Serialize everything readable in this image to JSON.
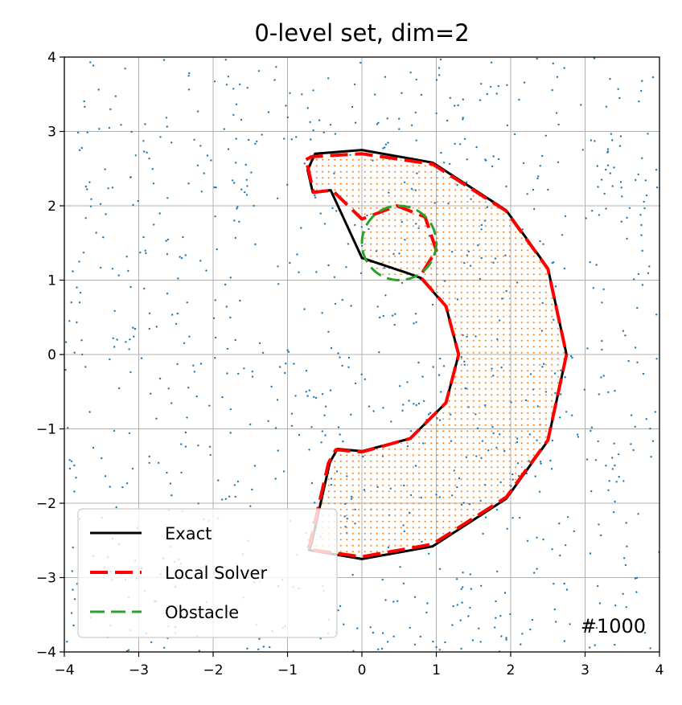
{
  "chart_data": {
    "type": "line",
    "title": "0-level set, dim=2",
    "xlabel": "",
    "ylabel": "",
    "xlim": [
      -4,
      4
    ],
    "ylim": [
      -4,
      4
    ],
    "xticks": [
      "−4",
      "−3",
      "−2",
      "−1",
      "0",
      "1",
      "2",
      "3",
      "4"
    ],
    "yticks": [
      "−4",
      "−3",
      "−2",
      "−1",
      "0",
      "1",
      "2",
      "3",
      "4"
    ],
    "grid": true,
    "legend_position": "lower-left",
    "annotation": "#1000",
    "region": {
      "outer_radius": 2.75,
      "inner_radius": 1.3,
      "gap_start_angle_deg": 105,
      "gap_end_angle_deg": 253,
      "color": "#ff7f0e"
    },
    "series": [
      {
        "name": "Exact",
        "color": "#000000",
        "style": "solid",
        "width": 3,
        "x": [
          -0.73,
          -0.63,
          0.0,
          0.95,
          1.94,
          2.5,
          2.75,
          2.5,
          1.94,
          0.95,
          0.0,
          -0.71,
          -0.68,
          -0.43,
          -0.33,
          0.0,
          0.65,
          1.13,
          1.3,
          1.13,
          0.79,
          0.6,
          0.0,
          -0.42,
          -0.66,
          -0.73
        ],
        "y": [
          2.48,
          2.7,
          2.75,
          2.58,
          1.94,
          1.16,
          0.0,
          -1.16,
          -1.94,
          -2.58,
          -2.75,
          -2.63,
          -2.55,
          -1.45,
          -1.27,
          -1.3,
          -1.13,
          -0.65,
          0.0,
          0.65,
          1.03,
          1.1,
          1.3,
          2.21,
          2.18,
          2.48
        ]
      },
      {
        "name": "Local Solver",
        "color": "#ff0000",
        "style": "dashed",
        "width": 4,
        "x": [
          -0.75,
          -0.68,
          0.0,
          0.95,
          1.94,
          2.5,
          2.75,
          2.5,
          1.94,
          0.95,
          0.0,
          -0.73,
          -0.7,
          -0.45,
          -0.35,
          0.0,
          0.65,
          1.13,
          1.3,
          1.13,
          0.78,
          1.0,
          0.85,
          0.47,
          0.0,
          -0.4,
          -0.65,
          -0.75
        ],
        "y": [
          2.62,
          2.66,
          2.7,
          2.56,
          1.93,
          1.15,
          0.0,
          -1.15,
          -1.92,
          -2.55,
          -2.72,
          -2.62,
          -2.55,
          -1.46,
          -1.28,
          -1.31,
          -1.13,
          -0.65,
          0.0,
          0.65,
          1.05,
          1.4,
          1.85,
          2.0,
          1.82,
          2.21,
          2.18,
          2.62
        ]
      },
      {
        "name": "Obstacle",
        "color": "#2ca02c",
        "style": "dashed",
        "width": 3,
        "center": [
          0.5,
          1.5
        ],
        "radius": 0.5
      }
    ]
  }
}
